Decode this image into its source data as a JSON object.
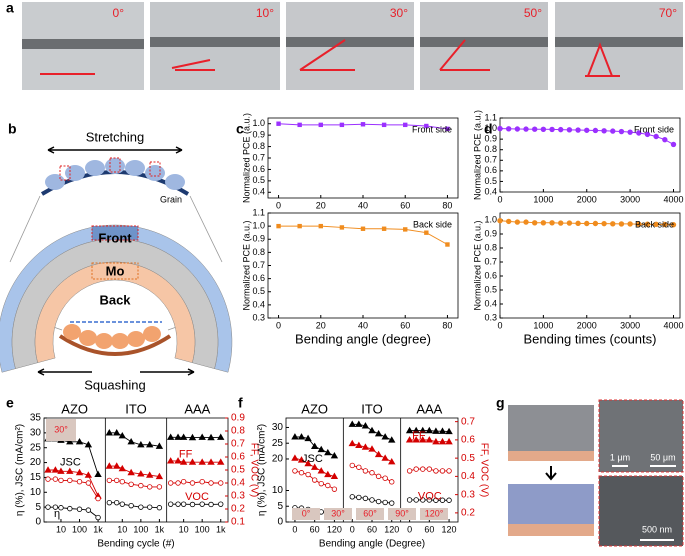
{
  "figure_a": {
    "panel": "a",
    "photos": [
      "0°",
      "10°",
      "30°",
      "50°",
      "70°"
    ]
  },
  "figure_b": {
    "panel": "b",
    "stretching": "Stretching",
    "grain": "Grain",
    "front": "Front",
    "mo": "Mo",
    "back": "Back",
    "squashing": "Squashing"
  },
  "figure_g": {
    "panel": "g",
    "scale_bars": [
      "1 μm",
      "50 μm",
      "500 nm"
    ]
  },
  "chart_data": [
    {
      "type": "line",
      "panel": "c",
      "annotation": "Front side",
      "ylabel": "Normalized PCE (a.u.)",
      "marker": "square",
      "color": "#9b30ff",
      "x": [
        0,
        10,
        20,
        30,
        40,
        50,
        60,
        70,
        80
      ],
      "values": [
        1.0,
        0.99,
        0.99,
        0.99,
        0.995,
        0.99,
        0.99,
        0.98,
        0.955
      ],
      "xlim": [
        -5,
        85
      ],
      "xticks": [
        0,
        20,
        40,
        60,
        80
      ],
      "ylim": [
        0.35,
        1.05
      ],
      "yticks": [
        0.4,
        0.5,
        0.6,
        0.7,
        0.8,
        0.9,
        {
          "value": 1,
          "label": "1.0"
        }
      ]
    },
    {
      "type": "line",
      "annotation": "Back side",
      "ylabel": "Normalized PCE (a.u.)",
      "xlabel": "Bending angle (degree)",
      "marker": "square",
      "color": "#f08c1e",
      "x": [
        0,
        10,
        20,
        30,
        40,
        50,
        60,
        70,
        80
      ],
      "values": [
        1.0,
        1.0,
        1.0,
        0.99,
        0.98,
        0.98,
        0.975,
        0.95,
        0.86
      ],
      "xlim": [
        -5,
        85
      ],
      "xticks": [
        0,
        20,
        40,
        60,
        80
      ],
      "ylim": [
        0.3,
        1.1
      ],
      "yticks": [
        0.3,
        0.4,
        0.5,
        0.6,
        0.7,
        0.8,
        0.9,
        {
          "value": 1,
          "label": "1.0"
        },
        1.1
      ]
    },
    {
      "type": "line",
      "panel": "d",
      "annotation": "Front side",
      "ylabel": "Normalized PCE (a.u.)",
      "marker": "circle",
      "color": "#9b30ff",
      "x": [
        0,
        200,
        400,
        600,
        800,
        1000,
        1200,
        1400,
        1600,
        1800,
        2000,
        2200,
        2400,
        2600,
        2800,
        3000,
        3200,
        3400,
        3600,
        3800,
        4000
      ],
      "values": [
        1.0,
        0.998,
        0.996,
        0.995,
        0.994,
        0.993,
        0.992,
        0.99,
        0.988,
        0.986,
        0.984,
        0.982,
        0.979,
        0.976,
        0.972,
        0.966,
        0.958,
        0.945,
        0.925,
        0.895,
        0.85
      ],
      "xlim": [
        0,
        4150
      ],
      "xticks": [
        0,
        1000,
        2000,
        3000,
        4000
      ],
      "ylim": [
        0.4,
        1.1
      ],
      "yticks": [
        0.4,
        0.5,
        0.6,
        0.7,
        0.8,
        0.9,
        {
          "value": 1,
          "label": "1.0"
        },
        1.1
      ]
    },
    {
      "type": "line",
      "annotation": "Back side",
      "ylabel": "Normalized PCE (a.u.)",
      "xlabel": "Bending times (counts)",
      "marker": "circle",
      "color": "#f08c1e",
      "x": [
        0,
        200,
        400,
        600,
        800,
        1000,
        1200,
        1400,
        1600,
        1800,
        2000,
        2200,
        2400,
        2600,
        2800,
        3000,
        3200,
        3400,
        3600,
        3800,
        4000
      ],
      "values": [
        0.995,
        0.99,
        0.985,
        0.985,
        0.98,
        0.98,
        0.98,
        0.978,
        0.978,
        0.976,
        0.975,
        0.975,
        0.974,
        0.973,
        0.972,
        0.972,
        0.97,
        0.97,
        0.969,
        0.968,
        0.966
      ],
      "xlim": [
        0,
        4150
      ],
      "xticks": [
        0,
        1000,
        2000,
        3000,
        4000
      ],
      "ylim": [
        0.3,
        1.05
      ],
      "yticks": [
        0.3,
        0.4,
        0.5,
        0.6,
        0.7,
        0.8,
        0.9,
        {
          "value": 1,
          "label": "1.0"
        }
      ]
    },
    {
      "type": "sectioned-line",
      "panel": "e",
      "ylabel": "η (%), JSC (mA/cm²)",
      "y2label": "FF, VOC (V)",
      "xlabel": "Bending cycle (#)",
      "log_x": true,
      "annotations": [
        "JSC",
        "FF",
        "VOC",
        "η"
      ],
      "inset": [
        "30°"
      ],
      "xlim": [
        2,
        1500
      ],
      "xticks": [
        10,
        100,
        {
          "value": 1000,
          "label": "1k"
        }
      ],
      "ylim": [
        0,
        35
      ],
      "yticks": [
        0,
        5,
        10,
        15,
        20,
        25,
        30,
        35
      ],
      "y2lim": [
        0.1,
        0.9
      ],
      "y2ticks": [
        0.1,
        0.2,
        0.3,
        0.4,
        0.5,
        0.6,
        0.7,
        0.8,
        0.9
      ],
      "sections": [
        {
          "name": "AZO",
          "x": [
            2,
            5,
            10,
            30,
            100,
            300,
            1000
          ],
          "series": [
            {
              "color": "#000000",
              "marker": "triangle",
              "filled": true,
              "values": [
                28,
                28,
                27.5,
                27,
                27,
                26,
                16
              ]
            },
            {
              "color": "#d40000",
              "marker": "triangle",
              "filled": true,
              "axis": "y2",
              "values": [
                0.5,
                0.5,
                0.49,
                0.49,
                0.48,
                0.46,
                0.3
              ]
            },
            {
              "color": "#d40000",
              "marker": "circle",
              "filled": false,
              "axis": "y2",
              "values": [
                0.43,
                0.43,
                0.42,
                0.42,
                0.41,
                0.4,
                0.28
              ]
            },
            {
              "color": "#000000",
              "marker": "circle",
              "filled": false,
              "values": [
                5,
                5,
                4.8,
                4.5,
                4.3,
                4,
                1.5
              ]
            }
          ]
        },
        {
          "name": "ITO",
          "x": [
            2,
            5,
            10,
            30,
            100,
            300,
            1000
          ],
          "series": [
            {
              "color": "#000000",
              "marker": "triangle",
              "filled": true,
              "values": [
                30,
                30,
                29,
                27,
                26,
                26,
                25.5
              ]
            },
            {
              "color": "#d40000",
              "marker": "triangle",
              "filled": true,
              "axis": "y2",
              "values": [
                0.53,
                0.53,
                0.51,
                0.48,
                0.47,
                0.46,
                0.45
              ]
            },
            {
              "color": "#d40000",
              "marker": "circle",
              "filled": false,
              "axis": "y2",
              "values": [
                0.42,
                0.42,
                0.41,
                0.39,
                0.38,
                0.37,
                0.37
              ]
            },
            {
              "color": "#000000",
              "marker": "circle",
              "filled": false,
              "values": [
                6.5,
                6.5,
                6,
                5.5,
                5,
                5,
                4.8
              ]
            }
          ]
        },
        {
          "name": "AAA",
          "x": [
            2,
            5,
            10,
            30,
            100,
            300,
            1000
          ],
          "series": [
            {
              "color": "#000000",
              "marker": "triangle",
              "filled": true,
              "values": [
                28.5,
                28.5,
                28.5,
                28.4,
                28.5,
                28.4,
                28.5
              ]
            },
            {
              "color": "#d40000",
              "marker": "triangle",
              "filled": true,
              "axis": "y2",
              "values": [
                0.57,
                0.57,
                0.56,
                0.56,
                0.56,
                0.56,
                0.56
              ]
            },
            {
              "color": "#d40000",
              "marker": "circle",
              "filled": false,
              "axis": "y2",
              "values": [
                0.4,
                0.4,
                0.41,
                0.4,
                0.41,
                0.4,
                0.4
              ]
            },
            {
              "color": "#000000",
              "marker": "circle",
              "filled": false,
              "values": [
                6,
                6,
                6,
                5.9,
                6,
                5.9,
                6
              ]
            }
          ]
        }
      ]
    },
    {
      "type": "sectioned-line",
      "panel": "f",
      "ylabel": "η (%), JSC (mA/cm²)",
      "y2label": "FF, VOC (V)",
      "xlabel": "Bending angle (Degree)",
      "log_x": false,
      "annotations": [
        "JSC",
        "FF",
        "VOC",
        "η"
      ],
      "inset": [
        "0°",
        "30°",
        "60°",
        "90°",
        "120°"
      ],
      "xlim": [
        -15,
        135
      ],
      "xticks": [
        0,
        60,
        120
      ],
      "ylim": [
        0,
        33
      ],
      "yticks": [
        0,
        5,
        10,
        20,
        25,
        30
      ],
      "y2lim": [
        0.15,
        0.72
      ],
      "y2ticks": [
        0.2,
        0.3,
        0.4,
        0.5,
        0.6,
        0.7
      ],
      "sections": [
        {
          "name": "AZO",
          "x": [
            0,
            20,
            40,
            60,
            80,
            100,
            120
          ],
          "series": [
            {
              "color": "#000000",
              "marker": "triangle",
              "filled": true,
              "values": [
                27,
                27,
                26.5,
                24,
                23,
                22,
                21
              ]
            },
            {
              "color": "#d40000",
              "marker": "triangle",
              "filled": true,
              "axis": "y2",
              "values": [
                0.5,
                0.49,
                0.47,
                0.45,
                0.43,
                0.41,
                0.4
              ]
            },
            {
              "color": "#d40000",
              "marker": "circle",
              "filled": false,
              "axis": "y2",
              "values": [
                0.43,
                0.42,
                0.41,
                0.38,
                0.36,
                0.35,
                0.33
              ]
            },
            {
              "color": "#000000",
              "marker": "circle",
              "filled": false,
              "values": [
                4.5,
                4.4,
                4,
                3.6,
                3.2,
                3,
                2.8
              ]
            }
          ]
        },
        {
          "name": "ITO",
          "x": [
            0,
            20,
            40,
            60,
            80,
            100,
            120
          ],
          "series": [
            {
              "color": "#000000",
              "marker": "triangle",
              "filled": true,
              "values": [
                31,
                31,
                30.5,
                29,
                28,
                27,
                26
              ]
            },
            {
              "color": "#d40000",
              "marker": "triangle",
              "filled": true,
              "axis": "y2",
              "values": [
                0.58,
                0.57,
                0.56,
                0.55,
                0.52,
                0.5,
                0.48
              ]
            },
            {
              "color": "#d40000",
              "marker": "circle",
              "filled": false,
              "axis": "y2",
              "values": [
                0.46,
                0.45,
                0.43,
                0.42,
                0.4,
                0.39,
                0.37
              ]
            },
            {
              "color": "#000000",
              "marker": "circle",
              "filled": false,
              "values": [
                8,
                7.8,
                7.5,
                7,
                6.5,
                6.2,
                6
              ]
            }
          ]
        },
        {
          "name": "AAA",
          "x": [
            0,
            20,
            40,
            60,
            80,
            100,
            120
          ],
          "series": [
            {
              "color": "#000000",
              "marker": "triangle",
              "filled": true,
              "values": [
                29,
                29,
                29,
                29,
                28.8,
                28.8,
                28.7
              ]
            },
            {
              "color": "#d40000",
              "marker": "triangle",
              "filled": true,
              "axis": "y2",
              "values": [
                0.6,
                0.6,
                0.6,
                0.6,
                0.59,
                0.59,
                0.59
              ]
            },
            {
              "color": "#d40000",
              "marker": "circle",
              "filled": false,
              "axis": "y2",
              "values": [
                0.43,
                0.44,
                0.44,
                0.44,
                0.43,
                0.43,
                0.43
              ]
            },
            {
              "color": "#000000",
              "marker": "circle",
              "filled": false,
              "values": [
                7,
                7,
                7,
                7,
                6.9,
                6.9,
                6.9
              ]
            }
          ]
        }
      ]
    }
  ]
}
